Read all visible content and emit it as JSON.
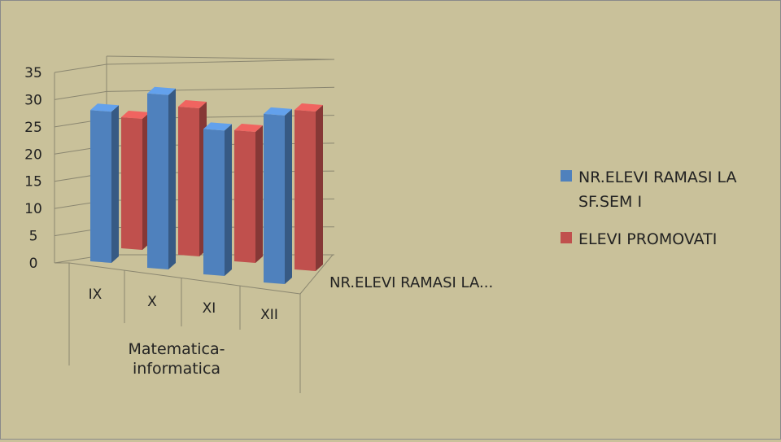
{
  "chart_data": {
    "type": "bar",
    "categories": [
      "IX",
      "X",
      "XI",
      "XII"
    ],
    "group_label": "Matematica-\ninformatica",
    "series": [
      {
        "name": "NR.ELEVI RAMASI LA SF.SEM I",
        "color": "#4f81bd",
        "values": [
          26,
          30,
          25,
          29
        ]
      },
      {
        "name": "ELEVI PROMOVATI",
        "color": "#c0504d",
        "values": [
          23,
          26,
          23,
          28
        ]
      }
    ],
    "depth_axis_label": "NR.ELEVI RAMASI LA...",
    "y_ticks": [
      "0",
      "5",
      "10",
      "15",
      "20",
      "25",
      "30",
      "35"
    ],
    "ylim": [
      0,
      35
    ],
    "grid": true,
    "legend_position": "right"
  }
}
